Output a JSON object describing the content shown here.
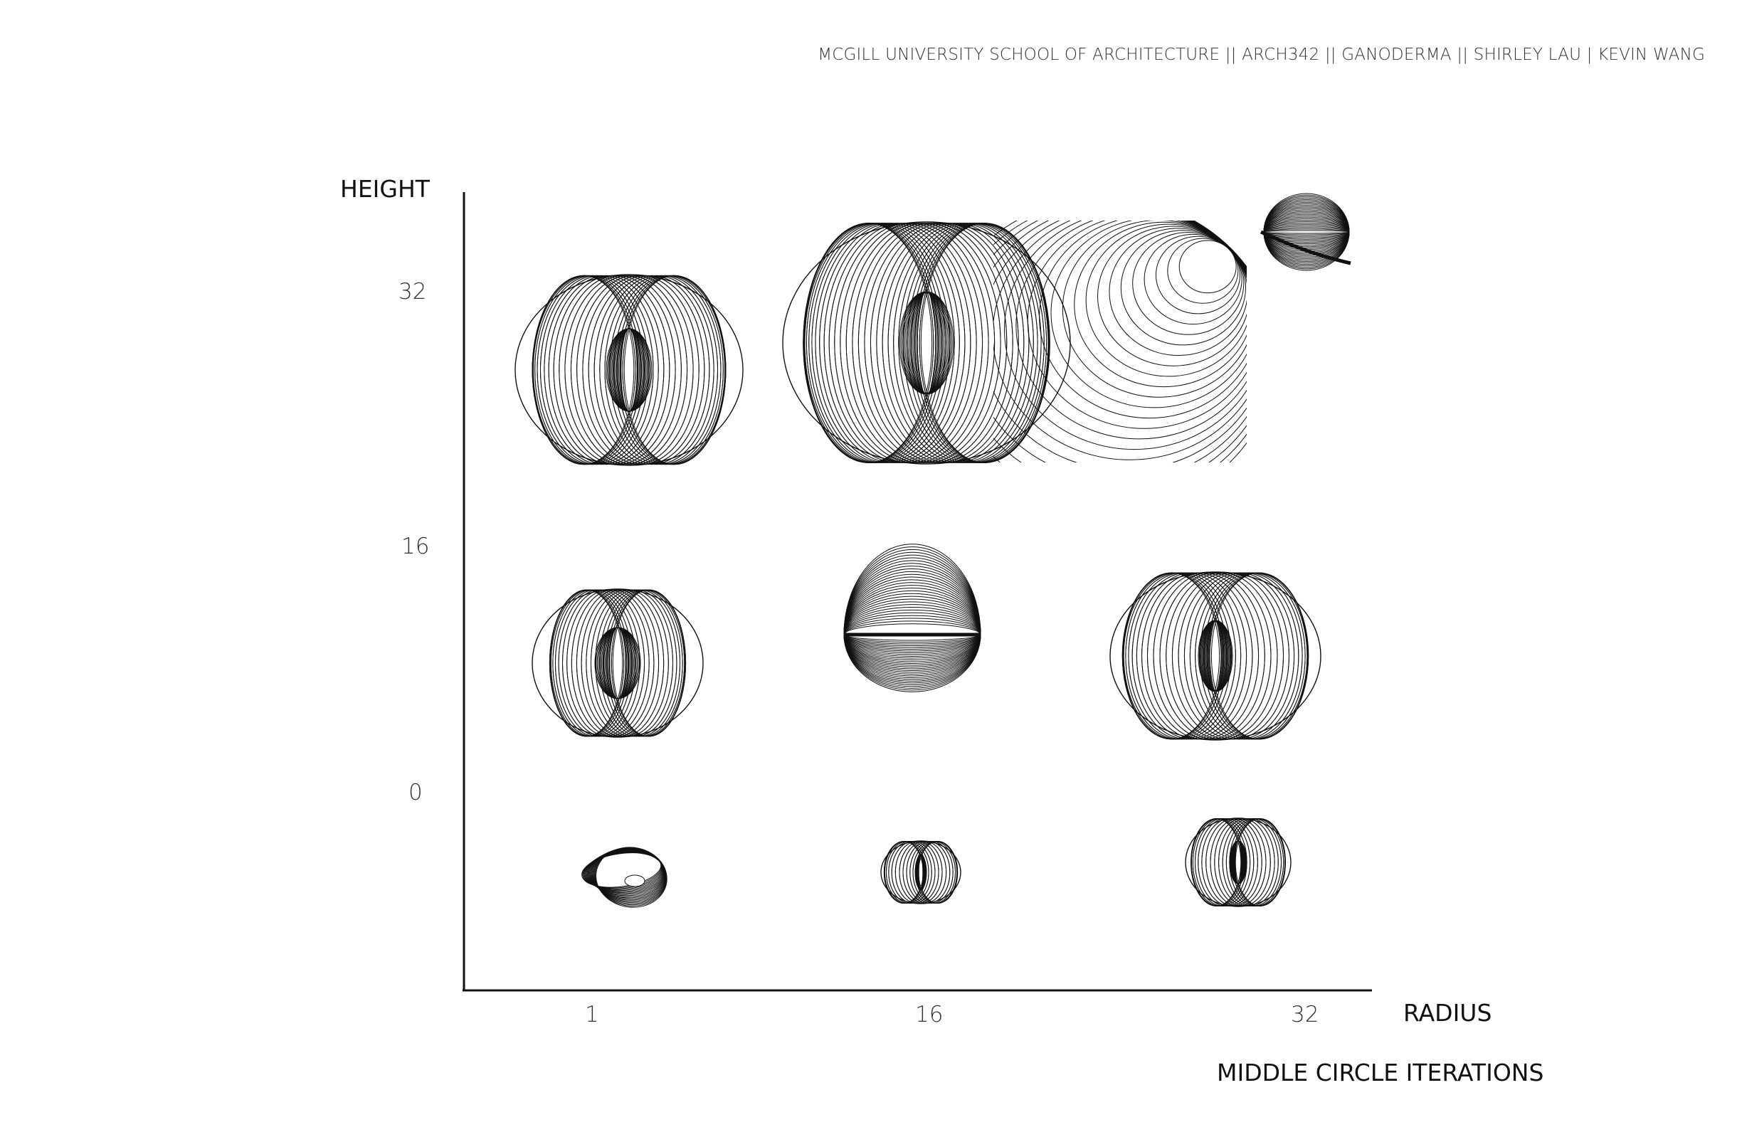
{
  "header": "MCGILL UNIVERSITY SCHOOL OF ARCHITECTURE ||  ARCH342 || GANODERMA || SHIRLEY LAU | KEVIN WANG",
  "axes": {
    "y_label": "HEIGHT",
    "x_label": "RADIUS",
    "x_caption": "MIDDLE CIRCLE ITERATIONS",
    "y_ticks": [
      "32",
      "16",
      "0"
    ],
    "x_ticks": [
      "1",
      "16",
      "32"
    ]
  },
  "grid": {
    "rows": [
      "32",
      "16",
      "0"
    ],
    "cols": [
      "1",
      "16",
      "32"
    ],
    "cells": [
      {
        "row": "32",
        "col": "1",
        "form": "torus"
      },
      {
        "row": "32",
        "col": "16",
        "form": "torus"
      },
      {
        "row": "32",
        "col": "32",
        "form": "offset-sphere"
      },
      {
        "row": "16",
        "col": "1",
        "form": "torus"
      },
      {
        "row": "16",
        "col": "16",
        "form": "split-sphere"
      },
      {
        "row": "16",
        "col": "32",
        "form": "torus"
      },
      {
        "row": "0",
        "col": "1",
        "form": "twisted-ring"
      },
      {
        "row": "0",
        "col": "16",
        "form": "torus"
      },
      {
        "row": "0",
        "col": "32",
        "form": "torus"
      }
    ]
  },
  "colors": {
    "line": "#111111",
    "background": "#ffffff"
  }
}
